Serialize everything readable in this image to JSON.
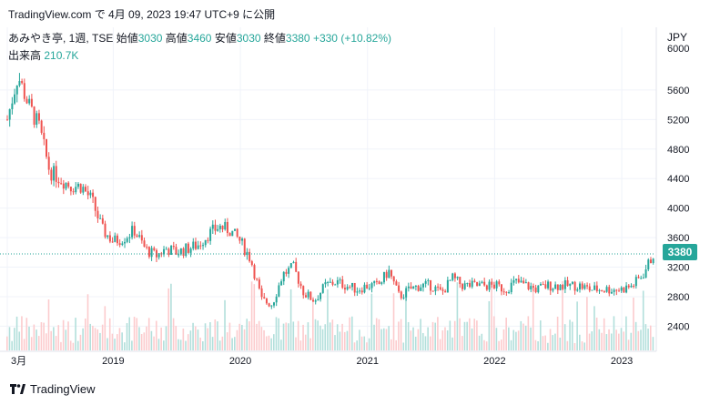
{
  "header": {
    "meta": "TradingView.com で 4月 09, 2023 19:47 UTC+9 に公開"
  },
  "legend": {
    "symbol": "あみやき亭, 1週, TSE",
    "open_label": "始値",
    "open": "3030",
    "high_label": "高値",
    "high": "3460",
    "low_label": "安値",
    "low": "3030",
    "close_label": "終値",
    "close": "3380",
    "change": "+330 (+10.82%)",
    "volume_label": "出来高",
    "volume": "210.7K"
  },
  "currency": "JPY",
  "last_price": "3380",
  "footer": {
    "brand": "TradingView"
  },
  "colors": {
    "up": "#26a69a",
    "down": "#ef5350",
    "grid": "#f0f3fa",
    "text": "#131722"
  },
  "chart_data": {
    "type": "candlestick",
    "x_ticks": [
      "3月",
      "2019",
      "2020",
      "2021",
      "2022",
      "2023"
    ],
    "y_ticks": [
      2400,
      2800,
      3200,
      3600,
      4000,
      4400,
      4800,
      5200,
      5600
    ],
    "y_top_label": "6000",
    "ylim": [
      2060,
      6080
    ],
    "last_price": 3380,
    "x_range": [
      "2018-03",
      "2023-04"
    ],
    "price_path": [
      [
        "2018-03",
        5200
      ],
      [
        "2018-04",
        5800
      ],
      [
        "2018-05",
        5400
      ],
      [
        "2018-06",
        5100
      ],
      [
        "2018-07",
        4500
      ],
      [
        "2018-08",
        4400
      ],
      [
        "2018-09",
        4300
      ],
      [
        "2018-10",
        4300
      ],
      [
        "2018-11",
        4100
      ],
      [
        "2018-12",
        3700
      ],
      [
        "2019-01",
        3550
      ],
      [
        "2019-02",
        3600
      ],
      [
        "2019-03",
        3700
      ],
      [
        "2019-04",
        3450
      ],
      [
        "2019-05",
        3350
      ],
      [
        "2019-06",
        3450
      ],
      [
        "2019-07",
        3400
      ],
      [
        "2019-08",
        3450
      ],
      [
        "2019-09",
        3500
      ],
      [
        "2019-10",
        3650
      ],
      [
        "2019-11",
        3750
      ],
      [
        "2019-12",
        3700
      ],
      [
        "2020-01",
        3550
      ],
      [
        "2020-02",
        3300
      ],
      [
        "2020-03",
        2750
      ],
      [
        "2020-04",
        2700
      ],
      [
        "2020-05",
        3100
      ],
      [
        "2020-06",
        3200
      ],
      [
        "2020-07",
        2850
      ],
      [
        "2020-08",
        2750
      ],
      [
        "2020-09",
        2950
      ],
      [
        "2020-10",
        3000
      ],
      [
        "2020-11",
        2950
      ],
      [
        "2020-12",
        2900
      ],
      [
        "2021-01",
        2950
      ],
      [
        "2021-02",
        2950
      ],
      [
        "2021-03",
        3150
      ],
      [
        "2021-04",
        2800
      ],
      [
        "2021-05",
        2900
      ],
      [
        "2021-06",
        2950
      ],
      [
        "2021-07",
        2950
      ],
      [
        "2021-08",
        2850
      ],
      [
        "2021-09",
        3050
      ],
      [
        "2021-10",
        2950
      ],
      [
        "2021-11",
        2950
      ],
      [
        "2021-12",
        2950
      ],
      [
        "2022-01",
        2950
      ],
      [
        "2022-02",
        2900
      ],
      [
        "2022-03",
        3000
      ],
      [
        "2022-04",
        2950
      ],
      [
        "2022-05",
        2900
      ],
      [
        "2022-06",
        2950
      ],
      [
        "2022-07",
        2950
      ],
      [
        "2022-08",
        2950
      ],
      [
        "2022-09",
        2950
      ],
      [
        "2022-10",
        2900
      ],
      [
        "2022-11",
        2900
      ],
      [
        "2022-12",
        2900
      ],
      [
        "2023-01",
        2900
      ],
      [
        "2023-02",
        2950
      ],
      [
        "2023-03",
        3100
      ],
      [
        "2023-04",
        3380
      ]
    ]
  }
}
